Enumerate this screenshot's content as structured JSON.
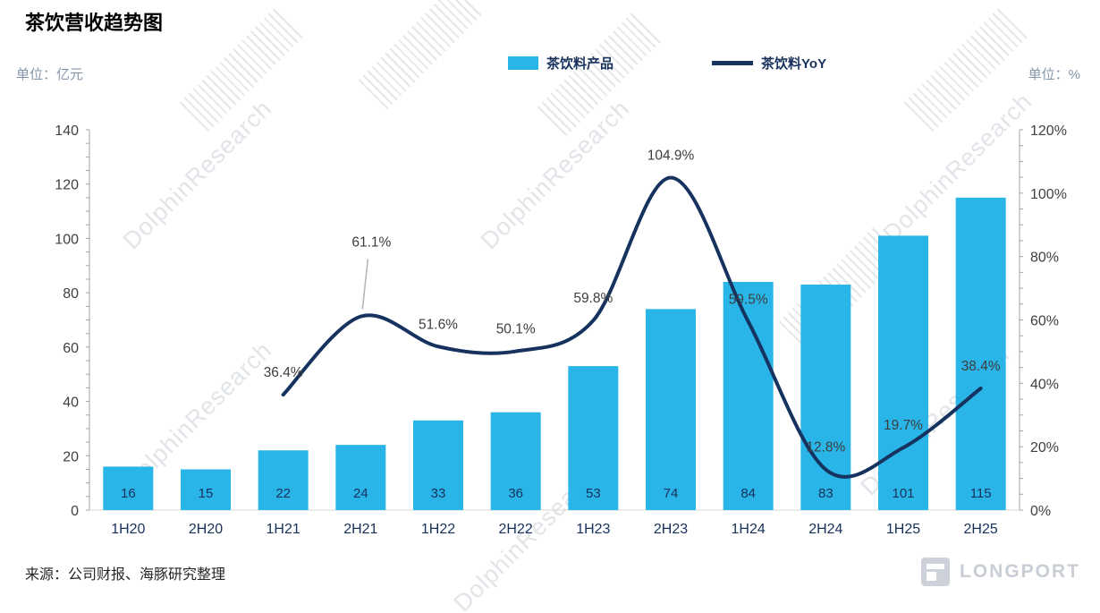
{
  "header": {
    "title": "茶饮营收趋势图"
  },
  "units": {
    "left": "单位：亿元",
    "right": "单位：%"
  },
  "legend": {
    "bar_label": "茶饮料产品",
    "line_label": "茶饮料YoY"
  },
  "footer": {
    "source": "来源：公司财报、海豚研究整理",
    "logo_text": "LONGPORT"
  },
  "watermark": {
    "text": "DolphinResearch"
  },
  "colors": {
    "bar": "#29b5e8",
    "line": "#16325f",
    "point_label": "#3d3d3d",
    "axis_text": "#404040",
    "bar_value_text": "#17315c",
    "x_label_text": "#17315c",
    "axis_line": "#a6a6a6",
    "baseline": "#d9d9d9",
    "leader_line": "#b3b3b3"
  },
  "chart_data": {
    "type": "bar",
    "title": "茶饮营收趋势图",
    "categories": [
      "1H20",
      "2H20",
      "1H21",
      "2H21",
      "1H22",
      "2H22",
      "1H23",
      "2H23",
      "1H24",
      "2H24",
      "1H25",
      "2H25"
    ],
    "series": [
      {
        "name": "茶饮料产品",
        "type": "bar",
        "axis": "left",
        "unit": "亿元",
        "values": [
          16,
          15,
          22,
          24,
          33,
          36,
          53,
          74,
          84,
          83,
          101,
          115
        ]
      },
      {
        "name": "茶饮料YoY",
        "type": "line",
        "axis": "right",
        "unit": "%",
        "values": [
          null,
          null,
          36.4,
          61.1,
          51.6,
          50.1,
          59.8,
          104.9,
          59.5,
          12.8,
          19.7,
          38.4
        ]
      }
    ],
    "left_axis": {
      "label": "单位：亿元",
      "min": 0,
      "max": 140,
      "step": 20
    },
    "right_axis": {
      "label": "单位：%",
      "min": 0,
      "max": 120,
      "step": 20,
      "unit": "%"
    },
    "legend_position": "top",
    "grid": false
  }
}
